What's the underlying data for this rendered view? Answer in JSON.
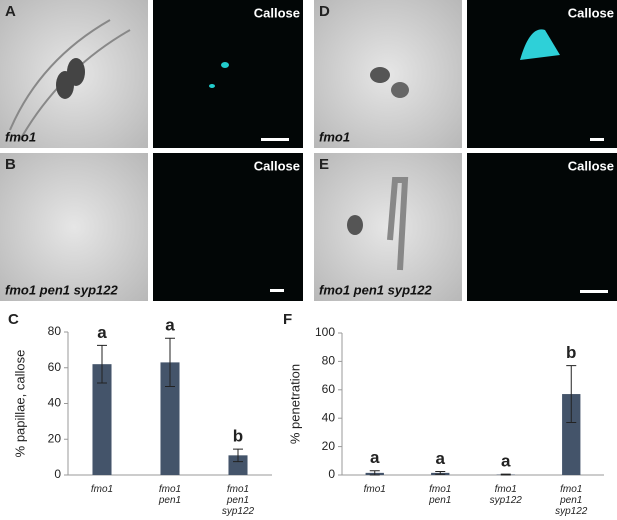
{
  "panels": [
    {
      "label": "A",
      "caption": "fmo1",
      "stain": "Callose"
    },
    {
      "label": "B",
      "caption": "fmo1 pen1 syp122",
      "stain": "Callose"
    },
    {
      "label": "D",
      "caption": "fmo1",
      "stain": "Callose"
    },
    {
      "label": "E",
      "caption": "fmo1 pen1 syp122",
      "stain": "Callose"
    }
  ],
  "chart_data": [
    {
      "type": "bar",
      "panel": "C",
      "y_label": "% papillae, callose",
      "categories": [
        "fmo1",
        "fmo1 pen1",
        "fmo1 pen1 syp122"
      ],
      "values": [
        62,
        63,
        11
      ],
      "errors": [
        10.5,
        13.5,
        3.5
      ],
      "significance": [
        "a",
        "a",
        "b"
      ],
      "color": "#44546a",
      "ylim": [
        0,
        80
      ],
      "yticks": [
        0,
        20,
        40,
        60,
        80
      ]
    },
    {
      "type": "bar",
      "panel": "F",
      "y_label": "% penetration",
      "categories": [
        "fmo1",
        "fmo1 pen1",
        "fmo1 syp122",
        "fmo1 pen1 syp122"
      ],
      "values": [
        1.5,
        1.5,
        0.3,
        57
      ],
      "errors": [
        1.5,
        1,
        0.3,
        20
      ],
      "significance": [
        "a",
        "a",
        "a",
        "b"
      ],
      "color": "#44546a",
      "ylim": [
        0,
        100
      ],
      "yticks": [
        0,
        20,
        40,
        60,
        80,
        100
      ]
    }
  ]
}
